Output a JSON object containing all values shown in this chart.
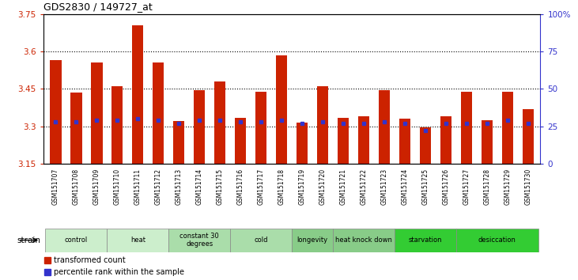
{
  "title": "GDS2830 / 149727_at",
  "samples": [
    "GSM151707",
    "GSM151708",
    "GSM151709",
    "GSM151710",
    "GSM151711",
    "GSM151712",
    "GSM151713",
    "GSM151714",
    "GSM151715",
    "GSM151716",
    "GSM151717",
    "GSM151718",
    "GSM151719",
    "GSM151720",
    "GSM151721",
    "GSM151722",
    "GSM151723",
    "GSM151724",
    "GSM151725",
    "GSM151726",
    "GSM151727",
    "GSM151728",
    "GSM151729",
    "GSM151730"
  ],
  "bar_values": [
    3.565,
    3.435,
    3.555,
    3.46,
    3.705,
    3.555,
    3.32,
    3.445,
    3.48,
    3.335,
    3.44,
    3.585,
    3.315,
    3.46,
    3.335,
    3.34,
    3.445,
    3.33,
    3.295,
    3.34,
    3.44,
    3.325,
    3.44,
    3.37
  ],
  "percentile_values": [
    28,
    28,
    29,
    29,
    30,
    29,
    27,
    29,
    29,
    28,
    28,
    29,
    27,
    28,
    27,
    27,
    28,
    27,
    22,
    27,
    27,
    27,
    29,
    27
  ],
  "bar_color": "#cc2200",
  "percentile_color": "#3333cc",
  "ymin": 3.15,
  "ymax": 3.75,
  "yright_min": 0,
  "yright_max": 100,
  "yticks_left": [
    3.15,
    3.3,
    3.45,
    3.6,
    3.75
  ],
  "yticks_right": [
    0,
    25,
    50,
    75,
    100
  ],
  "ytick_labels_left": [
    "3.15",
    "3.3",
    "3.45",
    "3.6",
    "3.75"
  ],
  "ytick_labels_right": [
    "0",
    "25",
    "50",
    "75",
    "100%"
  ],
  "hlines": [
    3.3,
    3.45,
    3.6
  ],
  "groups": [
    {
      "label": "control",
      "start": 0,
      "end": 2,
      "color": "#cceecc"
    },
    {
      "label": "heat",
      "start": 3,
      "end": 5,
      "color": "#cceecc"
    },
    {
      "label": "constant 30\ndegrees",
      "start": 6,
      "end": 8,
      "color": "#aaddaa"
    },
    {
      "label": "cold",
      "start": 9,
      "end": 11,
      "color": "#aaddaa"
    },
    {
      "label": "longevity",
      "start": 12,
      "end": 13,
      "color": "#88cc88"
    },
    {
      "label": "heat knock down",
      "start": 14,
      "end": 16,
      "color": "#88cc88"
    },
    {
      "label": "starvation",
      "start": 17,
      "end": 19,
      "color": "#33cc33"
    },
    {
      "label": "desiccation",
      "start": 20,
      "end": 23,
      "color": "#33cc33"
    }
  ],
  "xlabel_strain": "strain",
  "legend_labels": [
    "transformed count",
    "percentile rank within the sample"
  ],
  "bar_width": 0.55,
  "tick_color_left": "#cc2200",
  "tick_color_right": "#3333cc",
  "background_color": "#ffffff",
  "plot_bg_color": "#ffffff",
  "xtick_bg_color": "#d8d8d8"
}
